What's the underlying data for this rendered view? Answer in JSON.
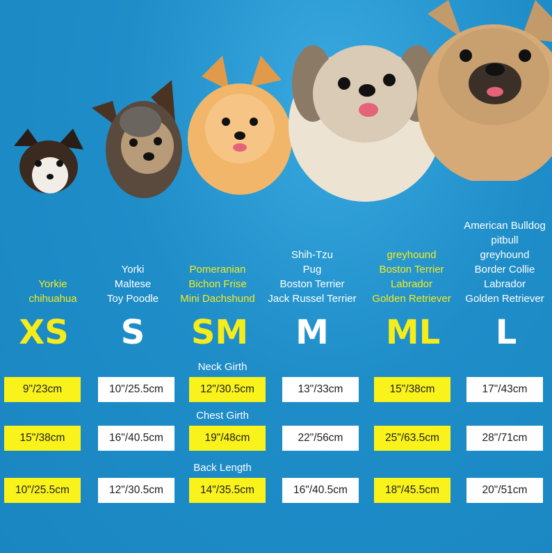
{
  "colors": {
    "background": "#1f8fc9",
    "highlight": "#faf31b",
    "text_yellow": "#f5ec1c",
    "text_white": "#ffffff"
  },
  "dogs": [
    "chihuahua-photo",
    "yorkie-photo",
    "pomeranian-photo",
    "shih-tzu-photo",
    "french-bulldog-photo"
  ],
  "columns": [
    {
      "size": "XS",
      "style": "yellow",
      "breeds": [
        "Yorkie",
        "chihuahua"
      ],
      "neck": "9\"/23cm",
      "chest": "15\"/38cm",
      "back": "10\"/25.5cm"
    },
    {
      "size": "S",
      "style": "white",
      "breeds": [
        "Yorki",
        "Maltese",
        "Toy Poodle"
      ],
      "neck": "10\"/25.5cm",
      "chest": "16\"/40.5cm",
      "back": "12\"/30.5cm"
    },
    {
      "size": "SM",
      "style": "yellow",
      "breeds": [
        "Pomeranian",
        "Bichon Frise",
        "Mini Dachshund"
      ],
      "neck": "12\"/30.5cm",
      "chest": "19\"/48cm",
      "back": "14\"/35.5cm"
    },
    {
      "size": "M",
      "style": "white",
      "breeds": [
        "Shih-Tzu",
        "Pug",
        "Boston Terrier",
        "Jack Russel Terrier"
      ],
      "neck": "13\"/33cm",
      "chest": "22\"/56cm",
      "back": "16\"/40.5cm"
    },
    {
      "size": "ML",
      "style": "yellow",
      "breeds": [
        "greyhound",
        "Boston Terrier",
        "Labrador",
        "Golden Retriever"
      ],
      "neck": "15\"/38cm",
      "chest": "25\"/63.5cm",
      "back": "18\"/45.5cm"
    },
    {
      "size": "L",
      "style": "white",
      "breeds": [
        "American Bulldog",
        "pitbull",
        "greyhound",
        "Border Collie",
        "Labrador",
        "Golden Retriever"
      ],
      "neck": "17\"/43cm",
      "chest": "28\"/71cm",
      "back": "20\"/51cm"
    }
  ],
  "sections": {
    "neck": "Neck Girth",
    "chest": "Chest Girth",
    "back": "Back Length"
  }
}
